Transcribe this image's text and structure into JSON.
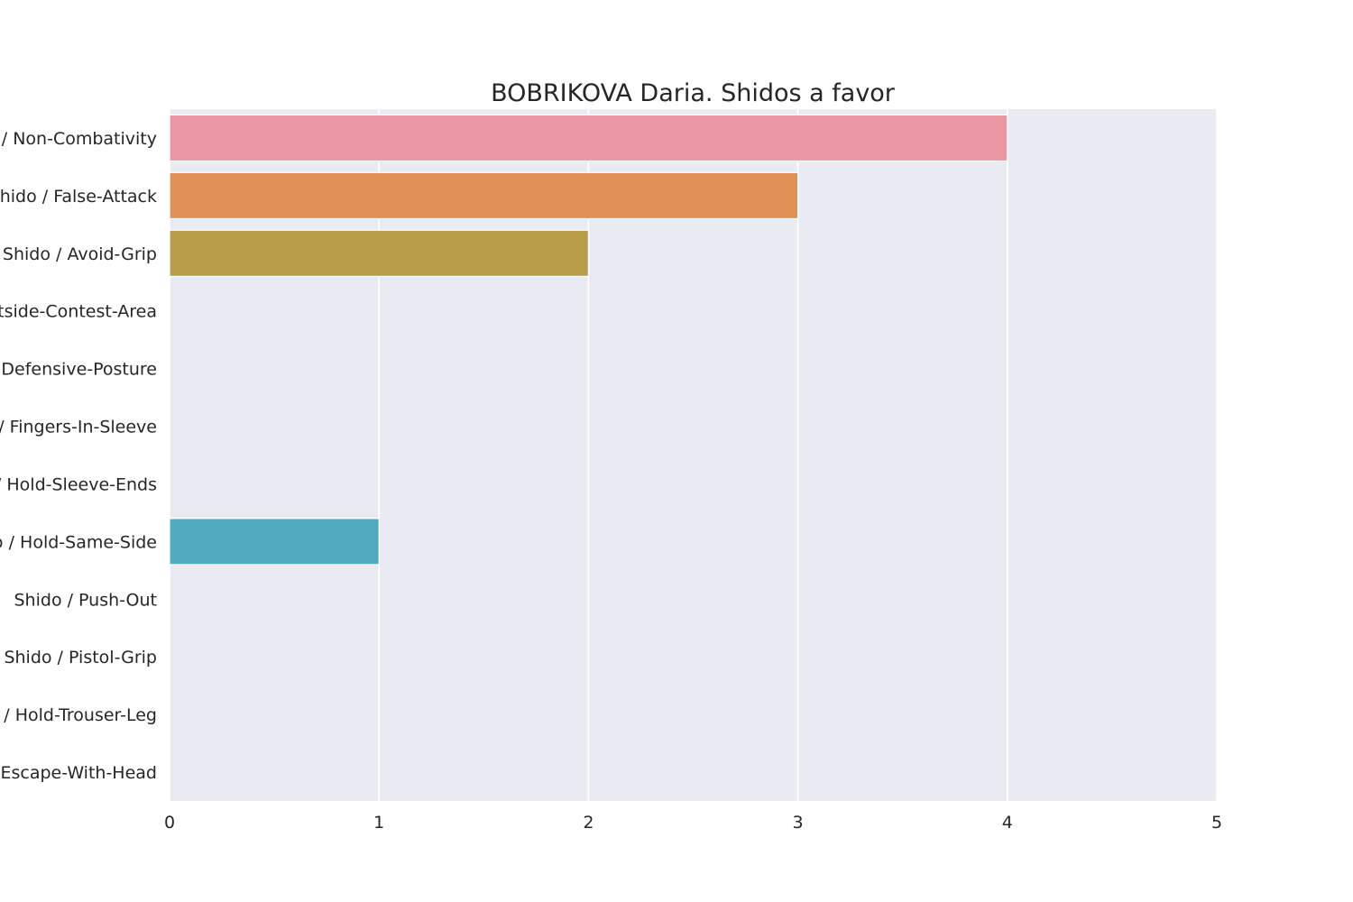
{
  "chart_data": {
    "type": "bar",
    "orientation": "horizontal",
    "title": "BOBRIKOVA Daria. Shidos a favor",
    "xlabel": "",
    "ylabel": "",
    "categories": [
      "Shido / Non-Combativity",
      "Shido / False-Attack",
      "Shido / Avoid-Grip",
      "Shido / Outside-Contest-Area",
      "Shido / Defensive-Posture",
      "Shido / Fingers-In-Sleeve",
      "Shido / Hold-Sleeve-Ends",
      "Shido / Hold-Same-Side",
      "Shido / Push-Out",
      "Shido / Pistol-Grip",
      "Shido / Hold-Trouser-Leg",
      "Shido / Escape-With-Head"
    ],
    "values": [
      4,
      3,
      2,
      0,
      0,
      0,
      0,
      1,
      0,
      0,
      0,
      0
    ],
    "xlim": [
      0,
      5
    ],
    "xticks": [
      "0",
      "1",
      "2",
      "3",
      "4",
      "5"
    ],
    "grid": true,
    "colors": [
      "#ea96a3",
      "#e19153",
      "#b89c49",
      "#8ea838",
      "#5eab5e",
      "#54a98f",
      "#55a6a5",
      "#50abbf",
      "#5aa6dc",
      "#a3a1ef",
      "#d48ef0",
      "#e88ecb"
    ],
    "background": "#eaeaf2",
    "gridline_color": "#ffffff"
  }
}
